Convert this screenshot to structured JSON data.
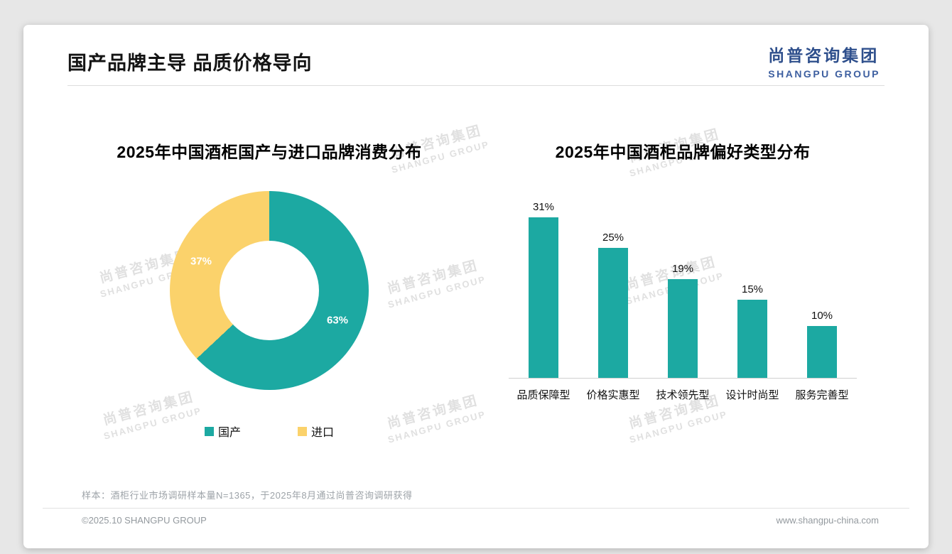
{
  "header": {
    "title": "国产品牌主导 品质价格导向",
    "logo_cn": "尚普咨询集团",
    "logo_en": "SHANGPU GROUP"
  },
  "watermark": {
    "cn": "尚普咨询集团",
    "en": "SHANGPU GROUP"
  },
  "colors": {
    "teal": "#1CA9A2",
    "yellow": "#FBD26B",
    "logo_blue": "#2E4F8C",
    "logo_blue_en": "#3D5FA0"
  },
  "chart_data": [
    {
      "type": "pie",
      "donut": true,
      "title": "2025年中国酒柜国产与进口品牌消费分布",
      "labels": [
        "国产",
        "进口"
      ],
      "values": [
        63,
        37
      ],
      "value_labels": [
        "63%",
        "37%"
      ],
      "colors": [
        "#1CA9A2",
        "#FBD26B"
      ],
      "legend_position": "bottom"
    },
    {
      "type": "bar",
      "title": "2025年中国酒柜品牌偏好类型分布",
      "categories": [
        "品质保障型",
        "价格实惠型",
        "技术领先型",
        "设计时尚型",
        "服务完善型"
      ],
      "values": [
        31,
        25,
        19,
        15,
        10
      ],
      "value_labels": [
        "31%",
        "25%",
        "19%",
        "15%",
        "10%"
      ],
      "bar_color": "#1CA9A2",
      "ylim": [
        0,
        35
      ],
      "grid": false,
      "legend_position": "none"
    }
  ],
  "footer": {
    "note": "样本：酒柜行业市场调研样本量N=1365，于2025年8月通过尚普咨询调研获得",
    "copyright": "©2025.10 SHANGPU GROUP",
    "website": "www.shangpu-china.com"
  }
}
